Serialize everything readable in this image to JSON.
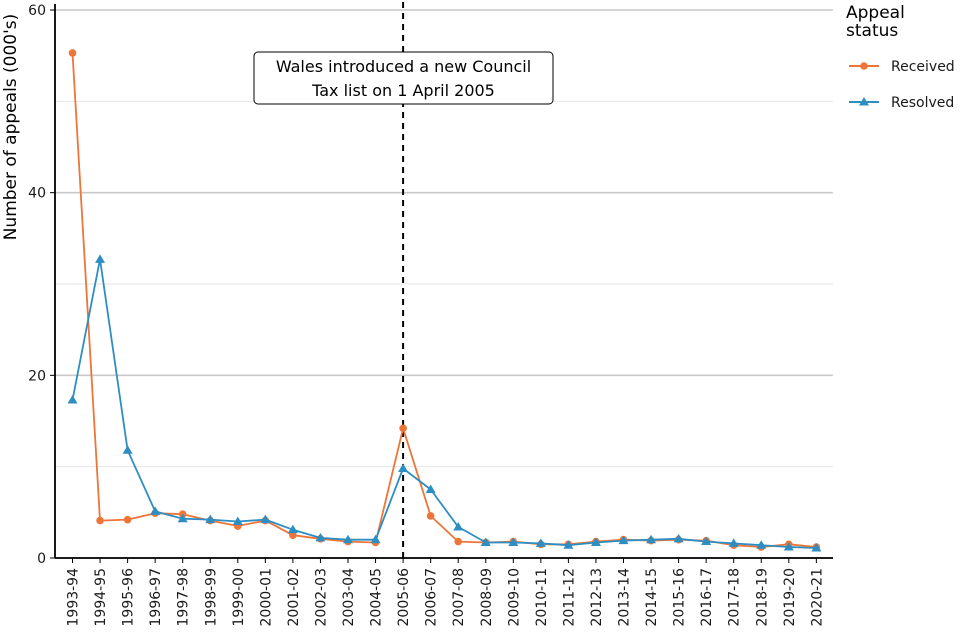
{
  "chart_data": {
    "type": "line",
    "ylabel": "Number of appeals (000's)",
    "xlabel": "",
    "ylim": [
      0,
      60
    ],
    "yticks": [
      0,
      20,
      40,
      60
    ],
    "grid": true,
    "legend": {
      "title": "Appeal status",
      "title_lines": [
        "Appeal",
        "status"
      ],
      "placement": "right"
    },
    "categories": [
      "1993-94",
      "1994-95",
      "1995-96",
      "1996-97",
      "1997-98",
      "1998-99",
      "1999-00",
      "2000-01",
      "2001-02",
      "2002-03",
      "2003-04",
      "2004-05",
      "2005-06",
      "2006-07",
      "2007-08",
      "2008-09",
      "2009-10",
      "2010-11",
      "2011-12",
      "2012-13",
      "2013-14",
      "2014-15",
      "2015-16",
      "2016-17",
      "2017-18",
      "2018-19",
      "2019-20",
      "2020-21"
    ],
    "series": [
      {
        "name": "Received",
        "color": "#ee7538",
        "marker": "circle",
        "values": [
          55.3,
          4.1,
          4.2,
          4.9,
          4.8,
          4.1,
          3.5,
          4.1,
          2.5,
          2.1,
          1.8,
          1.7,
          14.2,
          4.6,
          1.8,
          1.7,
          1.8,
          1.5,
          1.5,
          1.8,
          2.0,
          1.9,
          2.0,
          1.9,
          1.4,
          1.2,
          1.5,
          1.2
        ]
      },
      {
        "name": "Resolved",
        "color": "#2e8ec2",
        "marker": "triangle",
        "values": [
          17.3,
          32.7,
          11.8,
          5.1,
          4.3,
          4.2,
          4.0,
          4.2,
          3.1,
          2.2,
          2.0,
          2.0,
          9.8,
          7.5,
          3.4,
          1.7,
          1.7,
          1.6,
          1.4,
          1.7,
          1.9,
          2.0,
          2.1,
          1.8,
          1.6,
          1.4,
          1.2,
          1.1
        ]
      }
    ],
    "annotation": {
      "lines": [
        "Wales introduced a new Council",
        "Tax list on 1 April 2005"
      ],
      "at_category": "2005-06"
    }
  }
}
